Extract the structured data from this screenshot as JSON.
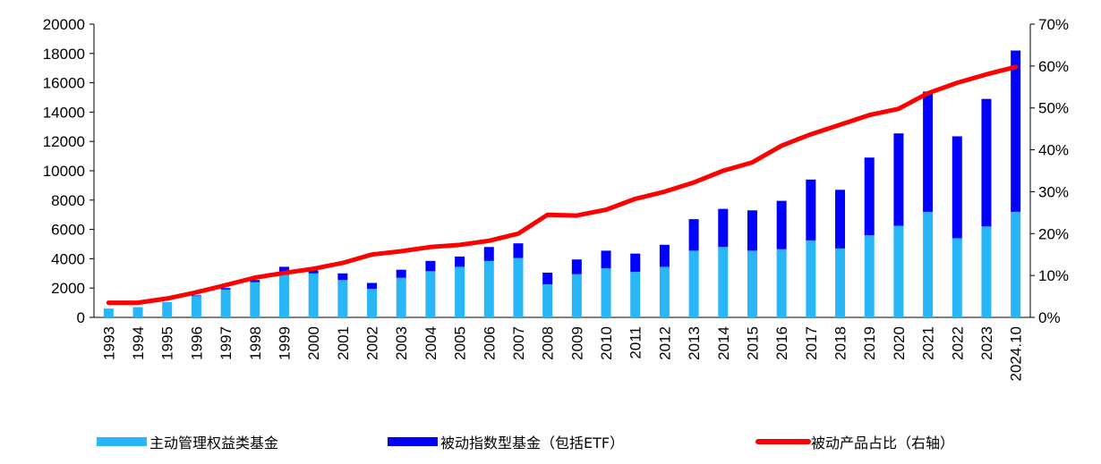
{
  "chart_data": {
    "type": "bar",
    "stacked": true,
    "categories": [
      "1993",
      "1994",
      "1995",
      "1996",
      "1997",
      "1998",
      "1999",
      "2000",
      "2001",
      "2002",
      "2003",
      "2004",
      "2005",
      "2006",
      "2007",
      "2008",
      "2009",
      "2010",
      "2011",
      "2012",
      "2013",
      "2014",
      "2015",
      "2016",
      "2017",
      "2018",
      "2019",
      "2020",
      "2021",
      "2022",
      "2023",
      "2024.10"
    ],
    "series": [
      {
        "name": "主动管理权益类基金",
        "kind": "bar",
        "axis": "left",
        "color": "#29b6f6",
        "values": [
          600,
          700,
          1050,
          1450,
          1900,
          2400,
          2900,
          3000,
          2550,
          1950,
          2700,
          3150,
          3450,
          3850,
          4050,
          2250,
          2950,
          3350,
          3100,
          3450,
          4550,
          4800,
          4550,
          4650,
          5250,
          4700,
          5600,
          6250,
          7200,
          5400,
          6200,
          7200
        ]
      },
      {
        "name": "被动指数型基金（包括ETF）",
        "kind": "bar",
        "axis": "left",
        "color": "#0000ff",
        "values": [
          0,
          0,
          0,
          50,
          100,
          150,
          550,
          200,
          450,
          400,
          550,
          700,
          700,
          950,
          1000,
          800,
          1000,
          1200,
          1250,
          1500,
          2150,
          2600,
          2750,
          3300,
          4150,
          4000,
          5300,
          6300,
          8200,
          6950,
          8700,
          11000
        ]
      },
      {
        "name": "被动产品占比（右轴）",
        "kind": "line",
        "axis": "right",
        "color": "#ff0000",
        "values": [
          0.035,
          0.035,
          0.045,
          0.06,
          0.077,
          0.095,
          0.106,
          0.116,
          0.13,
          0.15,
          0.158,
          0.168,
          0.173,
          0.183,
          0.2,
          0.245,
          0.243,
          0.257,
          0.283,
          0.3,
          0.322,
          0.35,
          0.37,
          0.41,
          0.437,
          0.46,
          0.483,
          0.498,
          0.535,
          0.56,
          0.58,
          0.598
        ]
      }
    ],
    "y_left": {
      "min": 0,
      "max": 20000,
      "ticks": [
        0,
        2000,
        4000,
        6000,
        8000,
        10000,
        12000,
        14000,
        16000,
        18000,
        20000
      ],
      "tick_labels": [
        "0",
        "2000",
        "4000",
        "6000",
        "8000",
        "10000",
        "12000",
        "14000",
        "16000",
        "18000",
        "20000"
      ]
    },
    "y_right": {
      "min": 0,
      "max": 0.7,
      "ticks": [
        0,
        0.1,
        0.2,
        0.3,
        0.4,
        0.5,
        0.6,
        0.7
      ],
      "tick_labels": [
        "0%",
        "10%",
        "20%",
        "30%",
        "40%",
        "50%",
        "60%",
        "70%"
      ]
    },
    "grid": false,
    "legend_position": "bottom",
    "legend": [
      "主动管理权益类基金",
      "被动指数型基金（包括ETF）",
      "被动产品占比（右轴）"
    ]
  }
}
